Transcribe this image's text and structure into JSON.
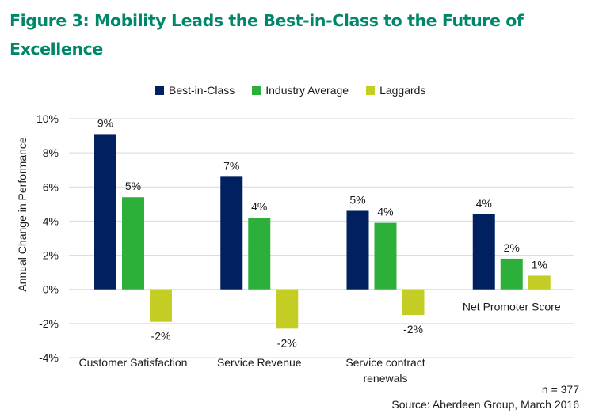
{
  "title": "Figure 3: Mobility Leads the Best-in-Class to the Future of Excellence",
  "footer": {
    "n": "n = 377",
    "source": "Source: Aberdeen Group, March 2016"
  },
  "chart_data": {
    "type": "bar",
    "title": "Figure 3: Mobility Leads the Best-in-Class to the Future of Excellence",
    "xlabel": "",
    "ylabel": "Annual Change in Performance",
    "ylim": [
      -4,
      10
    ],
    "yticks": [
      10,
      8,
      6,
      4,
      2,
      0,
      -2,
      -4
    ],
    "ytick_labels": [
      "10%",
      "8%",
      "6%",
      "4%",
      "2%",
      "0%",
      "-2%",
      "-4%"
    ],
    "grid": true,
    "legend_position": "top-center",
    "categories": [
      "Customer Satisfaction",
      "Service Revenue",
      "Service contract renewals",
      "Net Promoter Score"
    ],
    "category_label_lines": [
      [
        "Customer Satisfaction"
      ],
      [
        "Service Revenue"
      ],
      [
        "Service contract",
        "renewals"
      ],
      [
        "Net Promoter Score"
      ]
    ],
    "series": [
      {
        "name": "Best-in-Class",
        "color": "#002060",
        "values": [
          9.1,
          6.6,
          4.6,
          4.4
        ],
        "labels": [
          "9%",
          "7%",
          "5%",
          "4%"
        ]
      },
      {
        "name": "Industry Average",
        "color": "#2cb03a",
        "values": [
          5.4,
          4.2,
          3.9,
          1.8
        ],
        "labels": [
          "5%",
          "4%",
          "4%",
          "2%"
        ]
      },
      {
        "name": "Laggards",
        "color": "#c3cd24",
        "values": [
          -1.9,
          -2.3,
          -1.5,
          0.8
        ],
        "labels": [
          "-2%",
          "-2%",
          "-2%",
          "1%"
        ]
      }
    ]
  }
}
